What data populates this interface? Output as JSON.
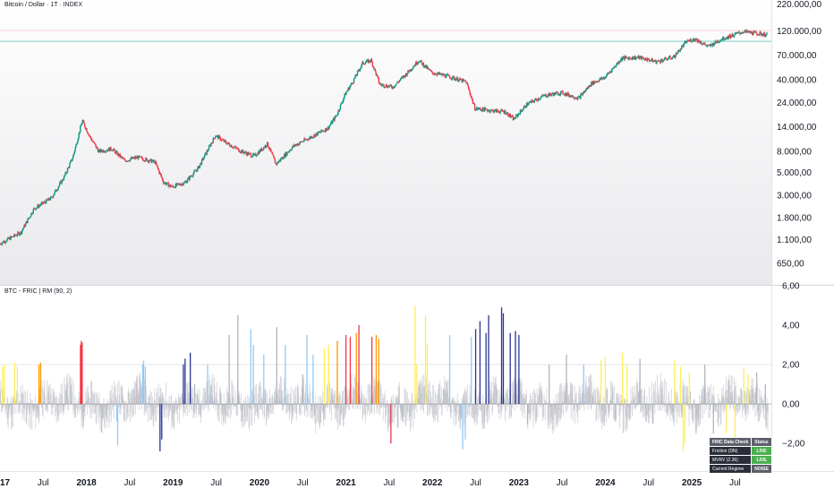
{
  "header": {
    "title": "Bitcoin / Dollar · 1T · INDEX",
    "indicator_title": "BTC - FRIC | RM (90, 2)"
  },
  "status_table": {
    "headers": [
      "FRIC Data Check",
      "Status"
    ],
    "rows": [
      {
        "label": "Friction (DN)",
        "status": "LIVE",
        "color": "#4caf50"
      },
      {
        "label": "MVRV (2.36)",
        "status": "LIVE",
        "color": "#4caf50"
      },
      {
        "label": "Current Regime",
        "status": "NOISE",
        "color": "#5d606b"
      }
    ]
  },
  "chart_data": [
    {
      "type": "line",
      "name": "price",
      "scale": "log",
      "yticks": [
        650,
        1100,
        1800,
        3000,
        5000,
        8000,
        14000,
        24000,
        40000,
        70000,
        120000,
        220000
      ],
      "ytick_labels": [
        "650,00",
        "1.100,00",
        "1.800,00",
        "3.000,00",
        "5.000,00",
        "8.000,00",
        "14.000,00",
        "24.000,00",
        "40.000,00",
        "70.000,00",
        "120.000,00",
        "220.000,00"
      ],
      "ylim": [
        400,
        240000
      ],
      "xlim": [
        2017.0,
        2025.92
      ],
      "xticks": [
        2017.0,
        2017.5,
        2018.0,
        2018.5,
        2019.0,
        2019.5,
        2020.0,
        2020.5,
        2021.0,
        2021.5,
        2022.0,
        2022.5,
        2023.0,
        2023.5,
        2024.0,
        2024.5,
        2025.0,
        2025.5
      ],
      "xtick_labels": [
        "2017",
        "Jul",
        "2018",
        "Jul",
        "2019",
        "Jul",
        "2020",
        "Jul",
        "2021",
        "Jul",
        "2022",
        "Jul",
        "2023",
        "Jul",
        "2024",
        "Jul",
        "2025",
        "Jul"
      ],
      "hlines": [
        {
          "value": 95000,
          "color": "#80cbc4"
        },
        {
          "value": 121000,
          "color": "#ffcdd2"
        }
      ],
      "x": [
        2017.0,
        2017.25,
        2017.4,
        2017.6,
        2017.75,
        2017.85,
        2017.96,
        2018.05,
        2018.15,
        2018.3,
        2018.45,
        2018.6,
        2018.8,
        2018.9,
        2019.0,
        2019.15,
        2019.3,
        2019.5,
        2019.6,
        2019.8,
        2019.95,
        2020.1,
        2020.2,
        2020.4,
        2020.6,
        2020.8,
        2020.9,
        2021.0,
        2021.1,
        2021.2,
        2021.3,
        2021.4,
        2021.55,
        2021.7,
        2021.85,
        2022.0,
        2022.2,
        2022.4,
        2022.5,
        2022.7,
        2022.85,
        2022.95,
        2023.1,
        2023.3,
        2023.5,
        2023.7,
        2023.85,
        2024.0,
        2024.2,
        2024.4,
        2024.6,
        2024.8,
        2024.95,
        2025.05,
        2025.2,
        2025.35,
        2025.5,
        2025.6,
        2025.7,
        2025.8,
        2025.87
      ],
      "values": [
        1000,
        1300,
        2200,
        2800,
        4500,
        7000,
        16000,
        11000,
        8000,
        8500,
        6500,
        7000,
        6300,
        4000,
        3600,
        4000,
        5500,
        11500,
        10000,
        8000,
        7200,
        9500,
        6000,
        9000,
        11000,
        13500,
        18000,
        29000,
        40000,
        58000,
        62000,
        36000,
        34000,
        45000,
        62000,
        47000,
        43000,
        38000,
        21000,
        20000,
        19500,
        16500,
        23000,
        28000,
        30000,
        26500,
        37000,
        42000,
        65000,
        66000,
        60000,
        67000,
        95000,
        100000,
        84000,
        100000,
        110000,
        118000,
        115000,
        112000,
        110000
      ]
    },
    {
      "type": "bar",
      "name": "FRIC RM (90, 2)",
      "yticks": [
        -2,
        0,
        2,
        4,
        6
      ],
      "ytick_labels": [
        "−2,00",
        "0,00",
        "2,00",
        "4,00",
        "6,00"
      ],
      "ylim": [
        -3.4,
        6.0
      ],
      "xlim": [
        2017.0,
        2025.92
      ],
      "baseline": 0,
      "colors": {
        "orange": "#ff9800",
        "red": "#f23645",
        "blue": "#283593",
        "lightblue": "#90caf9",
        "yellow": "#ffee58",
        "gray": "#b2b5be"
      },
      "spikes": [
        {
          "x": 2017.03,
          "v": 1.9,
          "c": "yellow"
        },
        {
          "x": 2017.05,
          "v": 2.0,
          "c": "yellow"
        },
        {
          "x": 2017.17,
          "v": 2.1,
          "c": "yellow"
        },
        {
          "x": 2017.2,
          "v": 1.9,
          "c": "yellow"
        },
        {
          "x": 2017.45,
          "v": 2.0,
          "c": "orange"
        },
        {
          "x": 2017.47,
          "v": 2.1,
          "c": "orange"
        },
        {
          "x": 2017.93,
          "v": 3.0,
          "c": "red"
        },
        {
          "x": 2017.94,
          "v": 3.2,
          "c": "red"
        },
        {
          "x": 2017.95,
          "v": 3.1,
          "c": "red"
        },
        {
          "x": 2018.35,
          "v": -0.9,
          "c": "lightblue"
        },
        {
          "x": 2018.36,
          "v": -2.1,
          "c": "lightblue"
        },
        {
          "x": 2018.65,
          "v": 2.0,
          "c": "lightblue"
        },
        {
          "x": 2018.66,
          "v": 2.2,
          "c": "lightblue"
        },
        {
          "x": 2018.68,
          "v": 1.9,
          "c": "lightblue"
        },
        {
          "x": 2018.85,
          "v": -2.4,
          "c": "blue"
        },
        {
          "x": 2018.87,
          "v": -1.8,
          "c": "blue"
        },
        {
          "x": 2019.12,
          "v": 2.0,
          "c": "blue"
        },
        {
          "x": 2019.14,
          "v": 2.3,
          "c": "blue"
        },
        {
          "x": 2019.2,
          "v": 2.6,
          "c": "blue"
        },
        {
          "x": 2019.25,
          "v": 1.0,
          "c": "gray"
        },
        {
          "x": 2019.4,
          "v": 2.0,
          "c": "lightblue"
        },
        {
          "x": 2019.65,
          "v": 3.5,
          "c": "gray"
        },
        {
          "x": 2019.75,
          "v": 4.5,
          "c": "gray"
        },
        {
          "x": 2019.9,
          "v": 3.8,
          "c": "lightblue"
        },
        {
          "x": 2019.93,
          "v": 3.0,
          "c": "lightblue"
        },
        {
          "x": 2020.05,
          "v": 2.5,
          "c": "lightblue"
        },
        {
          "x": 2020.2,
          "v": 3.9,
          "c": "gray"
        },
        {
          "x": 2020.3,
          "v": 3.0,
          "c": "lightblue"
        },
        {
          "x": 2020.5,
          "v": 1.5,
          "c": "gray"
        },
        {
          "x": 2020.55,
          "v": 3.5,
          "c": "lightblue"
        },
        {
          "x": 2020.62,
          "v": 2.5,
          "c": "lightblue"
        },
        {
          "x": 2020.75,
          "v": 2.8,
          "c": "yellow"
        },
        {
          "x": 2020.8,
          "v": 3.0,
          "c": "yellow"
        },
        {
          "x": 2020.9,
          "v": 3.2,
          "c": "orange"
        },
        {
          "x": 2021.0,
          "v": 3.5,
          "c": "red"
        },
        {
          "x": 2021.05,
          "v": 3.4,
          "c": "red"
        },
        {
          "x": 2021.12,
          "v": 3.6,
          "c": "orange"
        },
        {
          "x": 2021.15,
          "v": 4.0,
          "c": "red"
        },
        {
          "x": 2021.3,
          "v": 3.4,
          "c": "red"
        },
        {
          "x": 2021.35,
          "v": 3.5,
          "c": "orange"
        },
        {
          "x": 2021.38,
          "v": 3.3,
          "c": "orange"
        },
        {
          "x": 2021.52,
          "v": -2.0,
          "c": "red"
        },
        {
          "x": 2021.6,
          "v": -1.2,
          "c": "gray"
        },
        {
          "x": 2021.8,
          "v": 5.0,
          "c": "yellow"
        },
        {
          "x": 2021.82,
          "v": 2.0,
          "c": "yellow"
        },
        {
          "x": 2021.92,
          "v": 4.5,
          "c": "yellow"
        },
        {
          "x": 2021.94,
          "v": 3.0,
          "c": "yellow"
        },
        {
          "x": 2022.2,
          "v": 3.5,
          "c": "lightblue"
        },
        {
          "x": 2022.35,
          "v": -2.3,
          "c": "lightblue"
        },
        {
          "x": 2022.38,
          "v": -1.8,
          "c": "lightblue"
        },
        {
          "x": 2022.45,
          "v": 3.4,
          "c": "lightblue"
        },
        {
          "x": 2022.5,
          "v": 3.8,
          "c": "blue"
        },
        {
          "x": 2022.55,
          "v": 4.2,
          "c": "blue"
        },
        {
          "x": 2022.62,
          "v": 3.6,
          "c": "blue"
        },
        {
          "x": 2022.65,
          "v": 4.5,
          "c": "blue"
        },
        {
          "x": 2022.8,
          "v": 4.9,
          "c": "blue"
        },
        {
          "x": 2022.82,
          "v": 4.6,
          "c": "blue"
        },
        {
          "x": 2022.9,
          "v": 3.6,
          "c": "blue"
        },
        {
          "x": 2022.96,
          "v": 3.7,
          "c": "blue"
        },
        {
          "x": 2023.0,
          "v": 3.5,
          "c": "blue"
        },
        {
          "x": 2023.1,
          "v": -1.0,
          "c": "gray"
        },
        {
          "x": 2023.35,
          "v": 2.0,
          "c": "gray"
        },
        {
          "x": 2023.55,
          "v": 2.5,
          "c": "gray"
        },
        {
          "x": 2023.75,
          "v": 2.0,
          "c": "lightblue"
        },
        {
          "x": 2023.95,
          "v": 2.2,
          "c": "yellow"
        },
        {
          "x": 2024.0,
          "v": 2.4,
          "c": "yellow"
        },
        {
          "x": 2024.2,
          "v": 2.6,
          "c": "yellow"
        },
        {
          "x": 2024.25,
          "v": 2.0,
          "c": "yellow"
        },
        {
          "x": 2024.4,
          "v": 2.3,
          "c": "gray"
        },
        {
          "x": 2024.55,
          "v": -1.0,
          "c": "gray"
        },
        {
          "x": 2024.8,
          "v": 2.2,
          "c": "yellow"
        },
        {
          "x": 2024.87,
          "v": 1.9,
          "c": "yellow"
        },
        {
          "x": 2024.9,
          "v": -2.4,
          "c": "yellow"
        },
        {
          "x": 2024.92,
          "v": -2.0,
          "c": "yellow"
        },
        {
          "x": 2024.97,
          "v": 1.6,
          "c": "yellow"
        },
        {
          "x": 2025.15,
          "v": 2.0,
          "c": "gray"
        },
        {
          "x": 2025.25,
          "v": -1.5,
          "c": "gray"
        },
        {
          "x": 2025.4,
          "v": -1.5,
          "c": "yellow"
        },
        {
          "x": 2025.5,
          "v": -2.0,
          "c": "yellow"
        },
        {
          "x": 2025.6,
          "v": 1.8,
          "c": "yellow"
        },
        {
          "x": 2025.65,
          "v": 1.5,
          "c": "yellow"
        },
        {
          "x": 2025.75,
          "v": 1.6,
          "c": "gray"
        },
        {
          "x": 2025.85,
          "v": 1.0,
          "c": "gray"
        }
      ]
    }
  ]
}
